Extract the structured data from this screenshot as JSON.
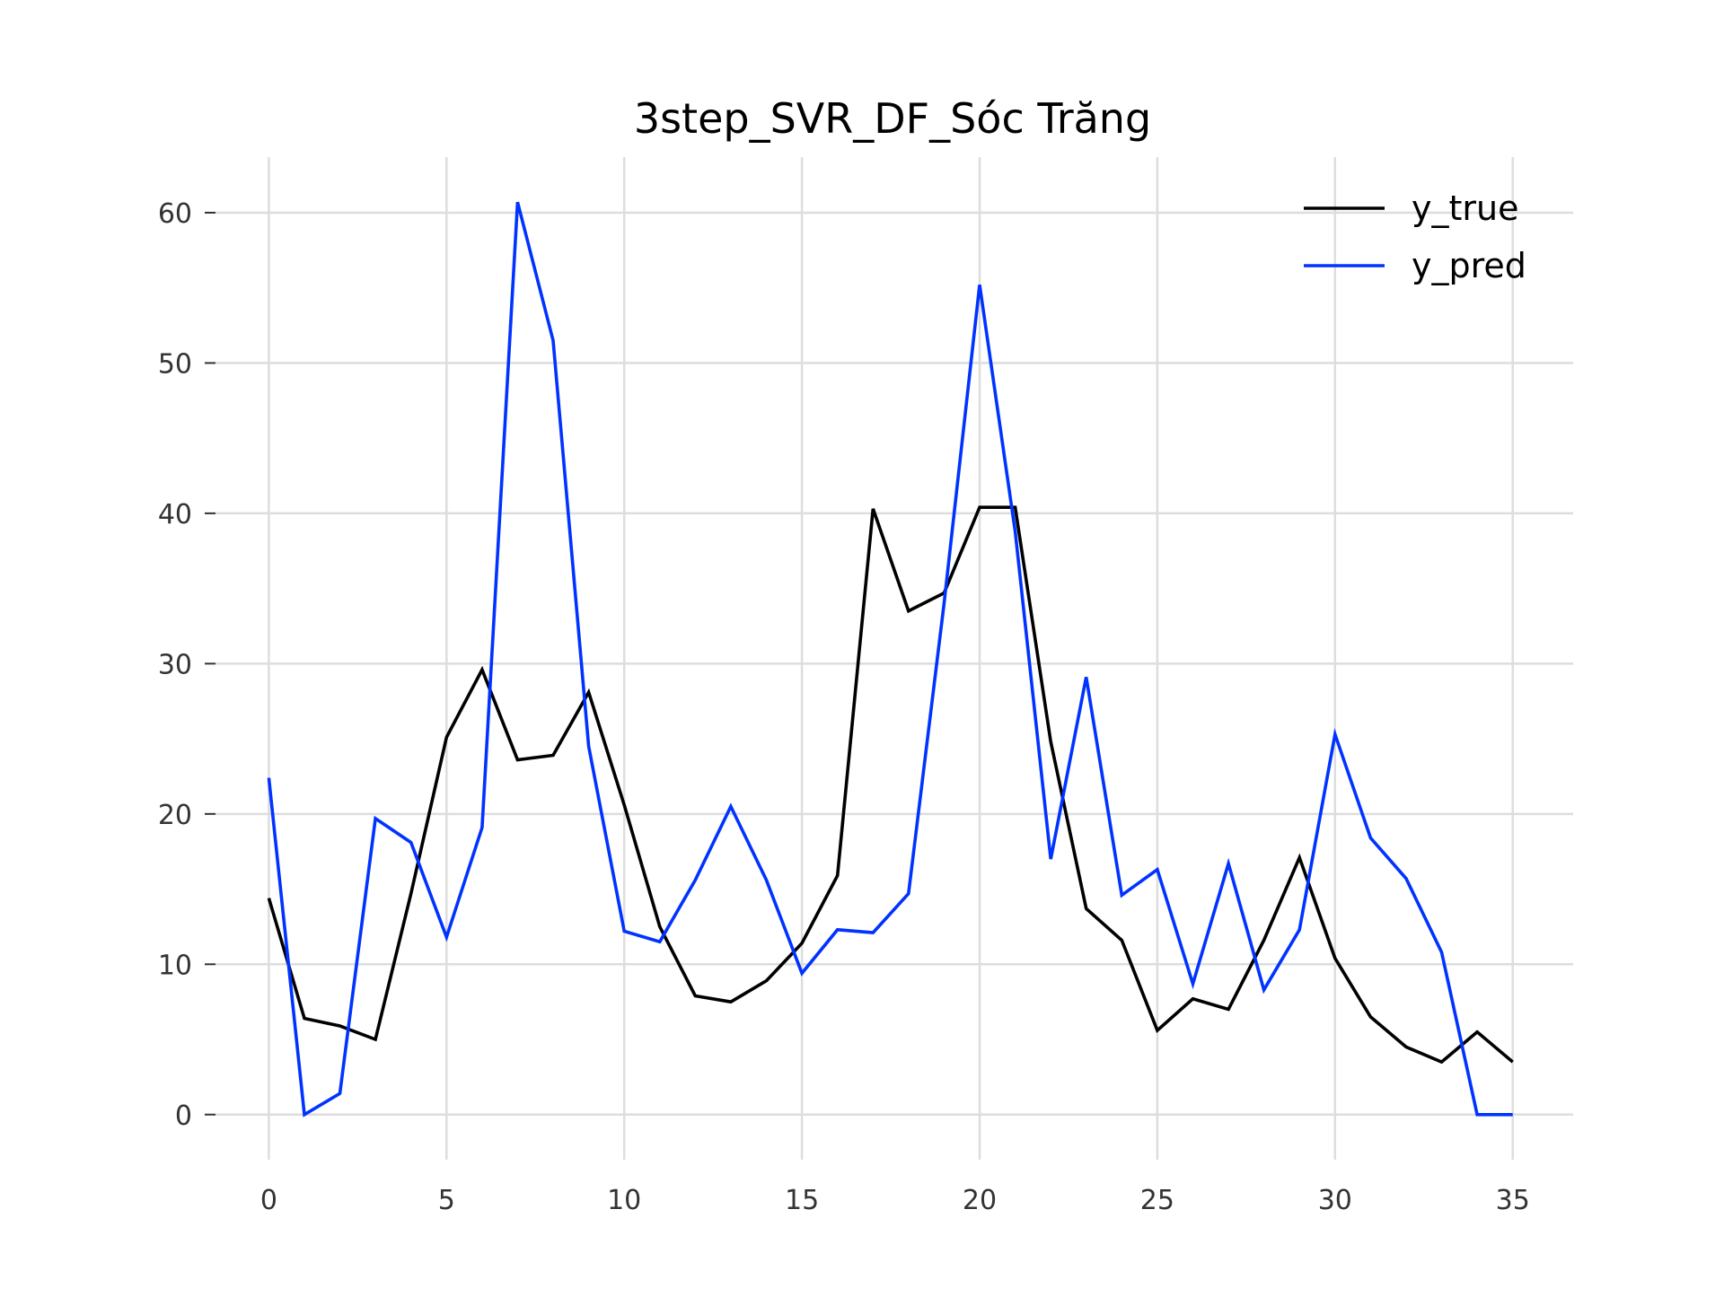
{
  "chart_data": {
    "type": "line",
    "title": "3step_SVR_DF_Sóc Trăng",
    "xlabel": "",
    "ylabel": "",
    "x": [
      0,
      1,
      2,
      3,
      4,
      5,
      6,
      7,
      8,
      9,
      10,
      11,
      12,
      13,
      14,
      15,
      16,
      17,
      18,
      19,
      20,
      21,
      22,
      23,
      24,
      25,
      26,
      27,
      28,
      29,
      30,
      31,
      32,
      33,
      34,
      35
    ],
    "xlim": [
      -1.5,
      36.7
    ],
    "ylim": [
      -3.0,
      63.7
    ],
    "xticks": [
      0,
      5,
      10,
      15,
      20,
      25,
      30,
      35
    ],
    "yticks": [
      0,
      10,
      20,
      30,
      40,
      50,
      60
    ],
    "grid": true,
    "legend_position": "top-right",
    "series": [
      {
        "name": "y_true",
        "color": "#000000",
        "values": [
          14.4,
          6.4,
          5.9,
          5.0,
          14.7,
          25.1,
          29.6,
          23.6,
          23.9,
          28.1,
          20.6,
          12.5,
          7.9,
          7.5,
          8.9,
          11.4,
          15.9,
          40.3,
          33.5,
          34.7,
          40.4,
          40.4,
          24.8,
          13.7,
          11.6,
          5.6,
          7.7,
          7.0,
          11.6,
          17.1,
          10.4,
          6.5,
          4.5,
          3.5,
          5.5,
          3.5
        ]
      },
      {
        "name": "y_pred",
        "color": "#0033ff",
        "values": [
          22.4,
          0.0,
          1.4,
          19.7,
          18.1,
          11.8,
          19.1,
          60.7,
          51.5,
          24.5,
          12.2,
          11.5,
          15.6,
          20.5,
          15.6,
          9.4,
          12.3,
          12.1,
          14.7,
          34.0,
          55.2,
          38.8,
          17.0,
          29.1,
          14.6,
          16.3,
          8.7,
          16.7,
          8.3,
          12.3,
          25.3,
          18.4,
          15.7,
          10.8,
          0.0,
          0.0
        ]
      }
    ]
  }
}
